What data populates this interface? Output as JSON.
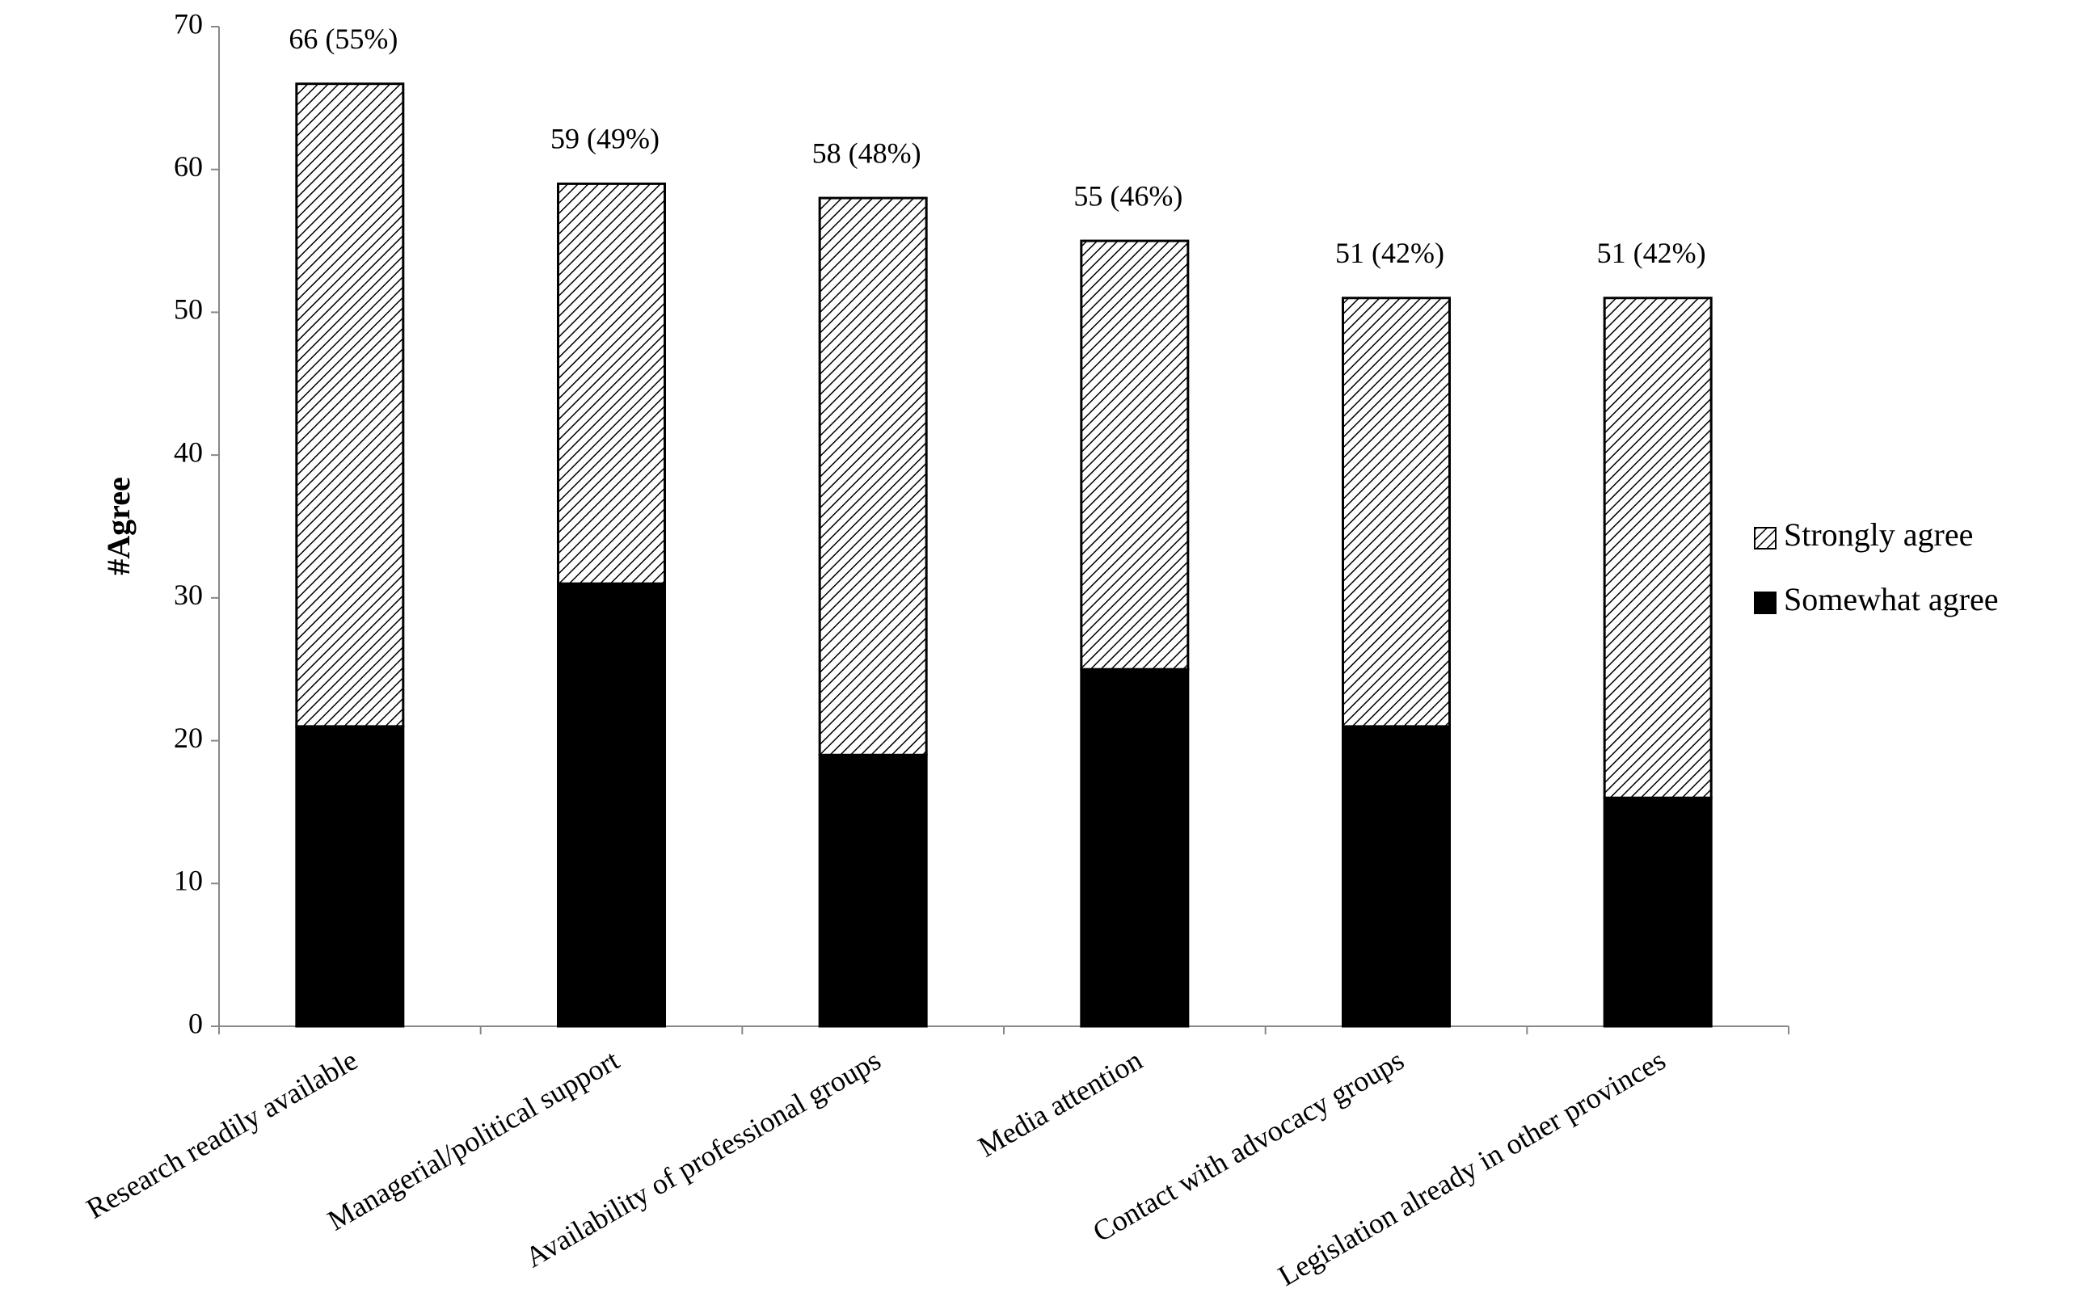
{
  "chart_data": {
    "type": "stacked-bar",
    "y_label": "#Agree",
    "categories": [
      "Research readily available",
      "Managerial/political support",
      "Availability of professional groups",
      "Media attention",
      "Contact with advocacy groups",
      "Legislation already in other provinces"
    ],
    "series": [
      {
        "name": "Somewhat agree",
        "color": "#000000",
        "hatch": false,
        "values": [
          21,
          31,
          19,
          25,
          21,
          16
        ]
      },
      {
        "name": "Strongly agree",
        "color": "#000000",
        "hatch": true,
        "values": [
          45,
          28,
          39,
          30,
          30,
          35
        ]
      }
    ],
    "totals": {
      "values": [
        66,
        59,
        58,
        55,
        51,
        51
      ],
      "value_labels": [
        "66 (55%)",
        "59 (49%)",
        "58 (48%)",
        "55 (46%)",
        "51 (42%)",
        "51 (42%)"
      ]
    },
    "ylim": [
      0,
      70
    ],
    "yticks": [
      0,
      10,
      20,
      30,
      40,
      50,
      60,
      70
    ],
    "legend": "right"
  }
}
